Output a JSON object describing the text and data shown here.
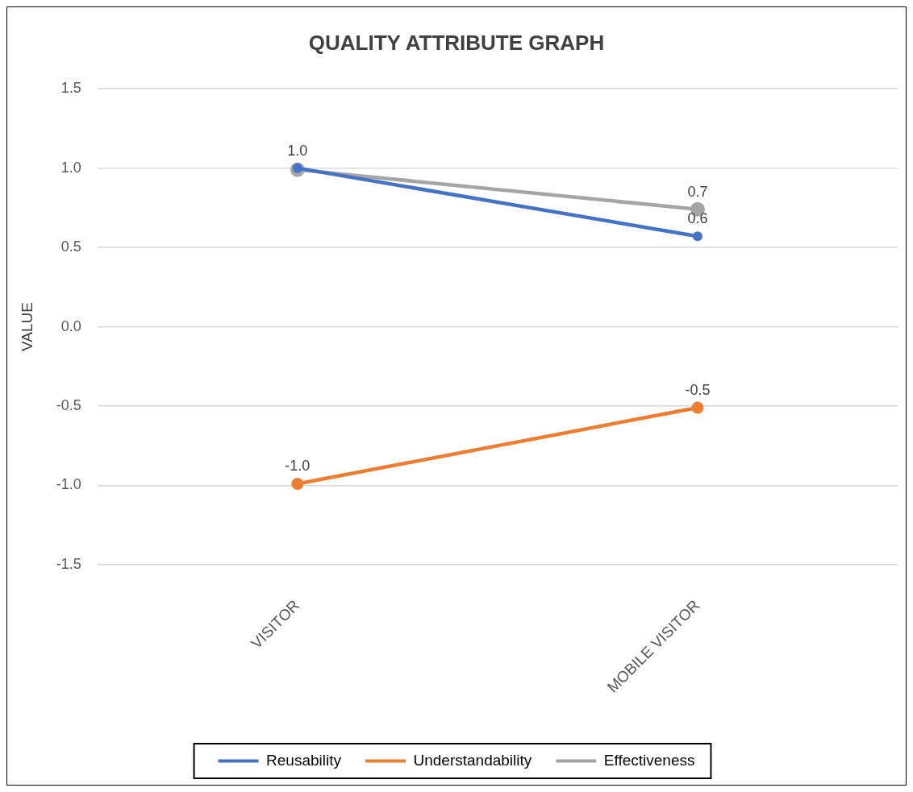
{
  "chart_data": {
    "type": "line",
    "title": "QUALITY ATTRIBUTE GRAPH",
    "ylabel": "VALUE",
    "categories": [
      "VISITOR",
      "MOBILE VISITOR"
    ],
    "series": [
      {
        "name": "Reusability",
        "color": "#4472c4",
        "values": [
          1.0,
          0.57
        ],
        "value_labels": [
          "1.0",
          "0.6"
        ]
      },
      {
        "name": "Understandability",
        "color": "#ed7d31",
        "values": [
          -0.99,
          -0.51
        ],
        "value_labels": [
          "-1.0",
          "-0.5"
        ]
      },
      {
        "name": "Effectiveness",
        "color": "#a5a5a5",
        "values": [
          0.99,
          0.74
        ],
        "value_labels": [
          null,
          "0.7"
        ]
      }
    ],
    "ylim": [
      -1.5,
      1.5
    ],
    "yticks": [
      {
        "value": -1.5,
        "label": "-1.5"
      },
      {
        "value": -1,
        "label": "-1.0"
      },
      {
        "value": -0.5,
        "label": "-0.5"
      },
      {
        "value": 0,
        "label": "0.0"
      },
      {
        "value": 0.5,
        "label": "0.5"
      },
      {
        "value": 1,
        "label": "1.0"
      },
      {
        "value": 1.5,
        "label": "1.5"
      }
    ],
    "grid": "y",
    "legend": "bottom",
    "marker": "circle",
    "line_style": "solid"
  }
}
